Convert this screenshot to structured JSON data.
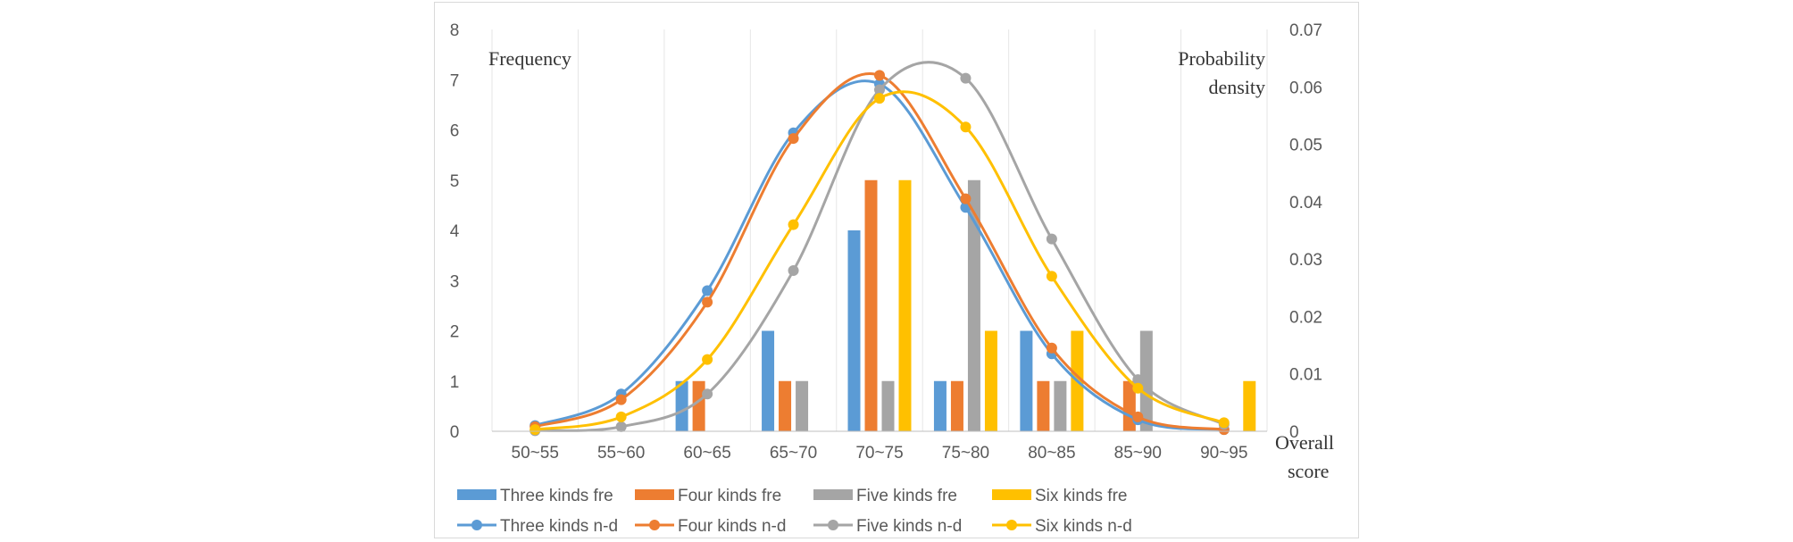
{
  "chart_data": {
    "type": "bar",
    "categories": [
      "50~55",
      "55~60",
      "60~65",
      "65~70",
      "70~75",
      "75~80",
      "80~85",
      "85~90",
      "90~95"
    ],
    "xlabel_line1": "Overall",
    "xlabel_line2": "score",
    "ylabel_left": "Frequency",
    "ylabel_right_line1": "Probability",
    "ylabel_right_line2": "density",
    "ylim_left": [
      0,
      8
    ],
    "ylim_right": [
      0,
      0.07
    ],
    "yticks_left": [
      "0",
      "1",
      "2",
      "3",
      "4",
      "5",
      "6",
      "7",
      "8"
    ],
    "yticks_right": [
      "0",
      "0.01",
      "0.02",
      "0.03",
      "0.04",
      "0.05",
      "0.06",
      "0.07"
    ],
    "grid": "vertical",
    "legend_position": "bottom",
    "bar_series": [
      {
        "name": "Three kinds fre",
        "color": "#5b9bd5",
        "values": [
          0,
          0,
          1,
          2,
          4,
          1,
          2,
          0,
          0
        ]
      },
      {
        "name": "Four kinds fre",
        "color": "#ed7d31",
        "values": [
          0,
          0,
          1,
          1,
          5,
          1,
          1,
          1,
          0
        ]
      },
      {
        "name": "Five kinds fre",
        "color": "#a5a5a5",
        "values": [
          0,
          0,
          0,
          1,
          1,
          5,
          1,
          2,
          0
        ]
      },
      {
        "name": "Six kinds fre",
        "color": "#ffc000",
        "values": [
          0,
          0,
          0,
          0,
          5,
          2,
          2,
          0,
          1
        ]
      }
    ],
    "line_series": [
      {
        "name": "Three kinds n-d",
        "color": "#5b9bd5",
        "values": [
          0.001,
          0.0065,
          0.0245,
          0.052,
          0.0605,
          0.039,
          0.0135,
          0.002,
          0.0003
        ]
      },
      {
        "name": "Four kinds n-d",
        "color": "#ed7d31",
        "values": [
          0.0008,
          0.0055,
          0.0225,
          0.051,
          0.062,
          0.0405,
          0.0145,
          0.0025,
          0.0003
        ]
      },
      {
        "name": "Five kinds n-d",
        "color": "#a5a5a5",
        "values": [
          0.0001,
          0.0008,
          0.0065,
          0.028,
          0.0595,
          0.0615,
          0.0335,
          0.009,
          0.0012
        ]
      },
      {
        "name": "Six kinds n-d",
        "color": "#ffc000",
        "values": [
          0.0003,
          0.0025,
          0.0125,
          0.036,
          0.058,
          0.053,
          0.027,
          0.0075,
          0.0015
        ]
      }
    ]
  }
}
